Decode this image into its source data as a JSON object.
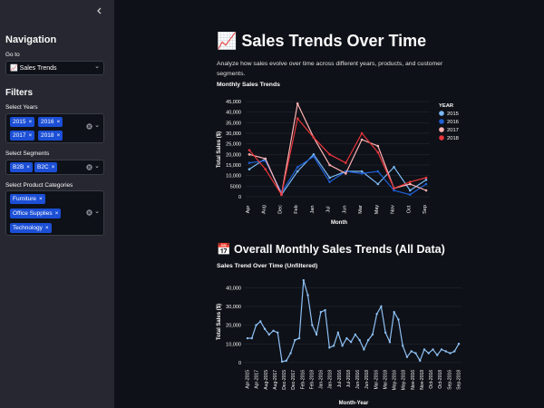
{
  "sidebar": {
    "collapse_icon": "chevron-left-icon",
    "nav_title": "Navigation",
    "goto_label": "Go to",
    "goto_value": "📈 Sales Trends",
    "filters_title": "Filters",
    "years_label": "Select Years",
    "years": [
      "2015",
      "2016",
      "2017",
      "2018"
    ],
    "segments_label": "Select Segments",
    "segments": [
      "B2B",
      "B2C"
    ],
    "categories_label": "Select Product Categories",
    "categories": [
      "Furniture",
      "Office Supplies",
      "Technology"
    ],
    "chip_remove": "×",
    "dropdown_arrow": "⌄"
  },
  "main": {
    "title": "📈 Sales Trends Over Time",
    "description": "Analyze how sales evolve over time across different years, products, and customer segments.",
    "chart1_subtitle": "Monthly Sales Trends",
    "chart2_title": "📅 Overall Monthly Sales Trends (All Data)",
    "chart2_subtitle": "Sales Trend Over Time (Unfiltered)"
  },
  "colors": {
    "2015": "#7ab8f5",
    "2016": "#1f5fd6",
    "2017": "#ffb3b3",
    "2018": "#e8353b",
    "overall": "#8ec0f5",
    "grid": "#2a2d36",
    "tick": "#fafafa"
  },
  "chart_data": [
    {
      "type": "line",
      "title": "Monthly Sales Trends",
      "xlabel": "Month",
      "ylabel": "Total Sales ($)",
      "legend_title": "YEAR",
      "categories": [
        "Apr",
        "Aug",
        "Dec",
        "Feb",
        "Jan",
        "Jul",
        "Jun",
        "Mar",
        "May",
        "Nov",
        "Oct",
        "Sep"
      ],
      "yticks": [
        0,
        5000,
        10000,
        15000,
        20000,
        25000,
        30000,
        35000,
        40000,
        45000
      ],
      "ytick_labels": [
        "0",
        "5000",
        "10,000",
        "15,000",
        "20,000",
        "25,000",
        "30,000",
        "35,000",
        "40,000",
        "45,000"
      ],
      "ylim": [
        0,
        45000
      ],
      "series": [
        {
          "name": "2015",
          "values": [
            13000,
            18000,
            1000,
            12000,
            20000,
            9000,
            12000,
            12000,
            6000,
            14000,
            3000,
            8000
          ]
        },
        {
          "name": "2016",
          "values": [
            16000,
            17000,
            2000,
            14000,
            19000,
            7000,
            12000,
            11000,
            12000,
            3000,
            1000,
            6000
          ]
        },
        {
          "name": "2017",
          "values": [
            20000,
            18000,
            1000,
            44000,
            28000,
            15000,
            11000,
            27000,
            24000,
            4000,
            6000,
            3000
          ]
        },
        {
          "name": "2018",
          "values": [
            22000,
            13000,
            1000,
            37000,
            28000,
            20000,
            16000,
            30000,
            21000,
            4000,
            7000,
            9000
          ]
        }
      ]
    },
    {
      "type": "line",
      "title": "Sales Trend Over Time (Unfiltered)",
      "xlabel": "Month-Year",
      "ylabel": "Total Sales ($)",
      "yticks": [
        0,
        10000,
        20000,
        30000,
        40000
      ],
      "ytick_labels": [
        "0",
        "10,000",
        "20,000",
        "30,000",
        "40,000"
      ],
      "ylim": [
        -2000,
        46000
      ],
      "xtick_labels": [
        "Apr-2015",
        "Apr-2017",
        "Aug-2015",
        "Aug-2017",
        "Dec-2015",
        "Dec-2017",
        "Feb-2016",
        "Feb-2018",
        "Jan-2016",
        "Jan-2018",
        "Jul-2016",
        "Jul-2018",
        "Jun-2016",
        "Jun-2018",
        "Mar-2016",
        "Mar-2018",
        "May-2016",
        "May-2018",
        "Nov-2016",
        "Nov-2018",
        "Oct-2016",
        "Oct-2018",
        "Sep-2016",
        "Sep-2018"
      ],
      "series": [
        {
          "name": "Total Sales",
          "values": [
            13000,
            13000,
            20000,
            22000,
            18000,
            15000,
            17000,
            16000,
            500,
            1000,
            5000,
            12000,
            13000,
            44000,
            36000,
            20000,
            15000,
            27000,
            28000,
            8000,
            9000,
            16000,
            9000,
            13000,
            11000,
            15000,
            12000,
            7000,
            12000,
            15000,
            26000,
            30000,
            16000,
            11000,
            27000,
            23000,
            9000,
            3000,
            6000,
            5000,
            1000,
            7000,
            5000,
            7000,
            4000,
            7000,
            6000,
            5000,
            6000,
            10000
          ]
        }
      ]
    }
  ]
}
